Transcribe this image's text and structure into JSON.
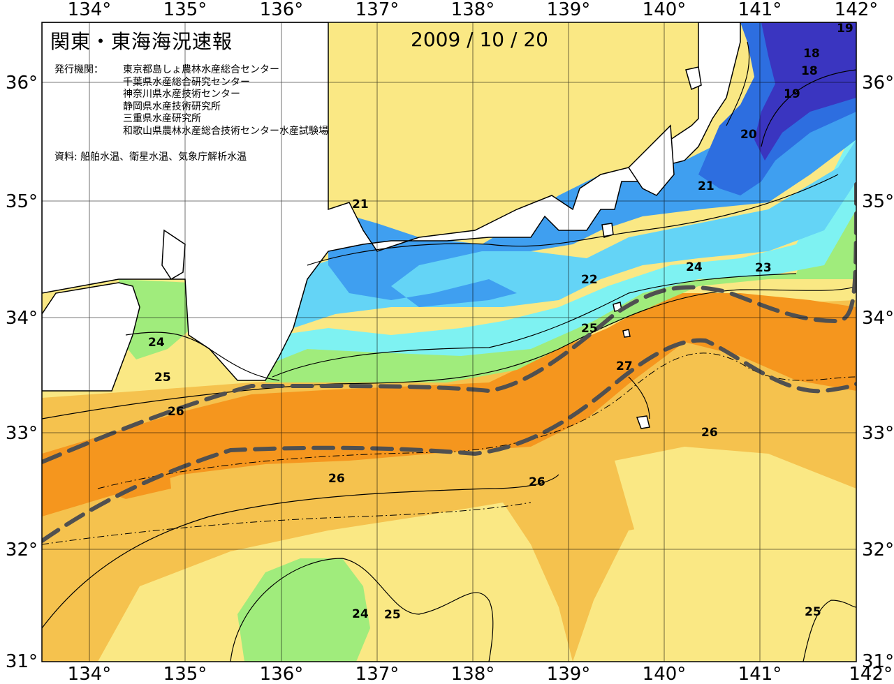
{
  "map": {
    "title": "関東・東海海況速報",
    "date": "2009 / 10 / 20",
    "issuer_label": "発行機関：",
    "issuers": [
      "東京都島しょ農林水産総合センター",
      "千葉県水産総合研究センター",
      "神奈川県水産技術センター",
      "静岡県水産技術研究所",
      "三重県水産研究所",
      "和歌山県農林水産総合技術センター水産試験場"
    ],
    "source": "資料: 船舶水温、衛星水温、気象庁解析水温",
    "lon_labels": [
      "134°",
      "135°",
      "136°",
      "137°",
      "138°",
      "139°",
      "140°",
      "141°",
      "142°"
    ],
    "lat_labels": [
      "36°",
      "35°",
      "34°",
      "33°",
      "32°",
      "31°"
    ],
    "contour_labels": [
      "19",
      "18",
      "18",
      "19",
      "20",
      "21",
      "21",
      "22",
      "23",
      "24",
      "24",
      "25",
      "25",
      "26",
      "27",
      "26",
      "26",
      "26",
      "24",
      "25",
      "25"
    ],
    "colors": {
      "t19": "#3a35c0",
      "t20": "#2d6ee0",
      "t21": "#3f9ff0",
      "t22": "#64d4f6",
      "t23": "#7ef2f2",
      "t24": "#a0ec7c",
      "t25": "#fae884",
      "t26": "#f5c24e",
      "t27": "#f5961e",
      "land": "#ffffff",
      "kuroshio_axis": "#505050"
    }
  }
}
